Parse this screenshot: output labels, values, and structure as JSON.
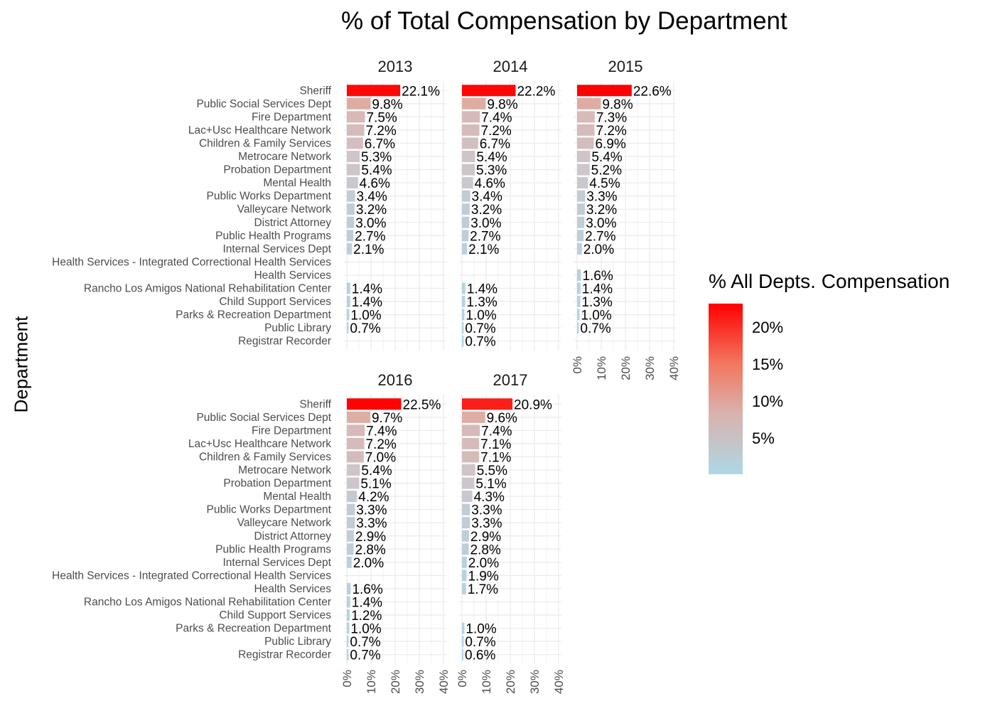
{
  "title": "% of Total Compensation by Department",
  "ylabel": "Department",
  "legend": {
    "title": "% All Depts. Compensation",
    "ticks": [
      "20%",
      "15%",
      "10%",
      "5%"
    ],
    "tick_values": [
      20,
      15,
      10,
      5
    ],
    "low_color": "#add8e6",
    "high_color": "#ff0000"
  },
  "chart_data": {
    "type": "bar",
    "orientation": "horizontal",
    "facet_by": "year",
    "x_ticks": [
      "0%",
      "10%",
      "20%",
      "30%",
      "40%"
    ],
    "xlim": [
      0,
      40
    ],
    "categories": [
      "Sheriff",
      "Public Social Services Dept",
      "Fire Department",
      "Lac+Usc Healthcare Network",
      "Children & Family Services",
      "Metrocare Network",
      "Probation Department",
      "Mental Health",
      "Public Works Department",
      "Valleycare Network",
      "District Attorney",
      "Public Health Programs",
      "Internal Services Dept",
      "Health Services - Integrated Correctional Health Services",
      "Health Services",
      "Rancho Los Amigos National Rehabilitation Center",
      "Child Support Services",
      "Parks & Recreation Department",
      "Public Library",
      "Registrar Recorder"
    ],
    "panels": [
      {
        "year": "2013",
        "values": [
          22.1,
          9.8,
          7.5,
          7.2,
          6.7,
          5.3,
          5.4,
          4.6,
          3.4,
          3.2,
          3.0,
          2.7,
          2.1,
          null,
          null,
          1.4,
          1.4,
          1.0,
          0.7,
          null
        ],
        "labels": [
          "22.1%",
          "9.8%",
          "7.5%",
          "7.2%",
          "6.7%",
          "5.3%",
          "5.4%",
          "4.6%",
          "3.4%",
          "3.2%",
          "3.0%",
          "2.7%",
          "2.1%",
          "",
          "",
          "1.4%",
          "1.4%",
          "1.0%",
          "0.7%",
          ""
        ]
      },
      {
        "year": "2014",
        "values": [
          22.2,
          9.8,
          7.4,
          7.2,
          6.7,
          5.4,
          5.3,
          4.6,
          3.4,
          3.2,
          3.0,
          2.7,
          2.1,
          null,
          null,
          1.4,
          1.3,
          1.0,
          0.7,
          0.7
        ],
        "labels": [
          "22.2%",
          "9.8%",
          "7.4%",
          "7.2%",
          "6.7%",
          "5.4%",
          "5.3%",
          "4.6%",
          "3.4%",
          "3.2%",
          "3.0%",
          "2.7%",
          "2.1%",
          "",
          "",
          "1.4%",
          "1.3%",
          "1.0%",
          "0.7%",
          "0.7%"
        ]
      },
      {
        "year": "2015",
        "values": [
          22.6,
          9.8,
          7.3,
          7.2,
          6.9,
          5.4,
          5.2,
          4.5,
          3.3,
          3.2,
          3.0,
          2.7,
          2.0,
          null,
          1.6,
          1.4,
          1.3,
          1.0,
          0.7,
          null
        ],
        "labels": [
          "22.6%",
          "9.8%",
          "7.3%",
          "7.2%",
          "6.9%",
          "5.4%",
          "5.2%",
          "4.5%",
          "3.3%",
          "3.2%",
          "3.0%",
          "2.7%",
          "2.0%",
          "",
          "1.6%",
          "1.4%",
          "1.3%",
          "1.0%",
          "0.7%",
          ""
        ]
      },
      {
        "year": "2016",
        "values": [
          22.5,
          9.7,
          7.4,
          7.2,
          7.0,
          5.4,
          5.1,
          4.2,
          3.3,
          3.3,
          2.9,
          2.8,
          2.0,
          null,
          1.6,
          1.4,
          1.2,
          1.0,
          0.7,
          0.7
        ],
        "labels": [
          "22.5%",
          "9.7%",
          "7.4%",
          "7.2%",
          "7.0%",
          "5.4%",
          "5.1%",
          "4.2%",
          "3.3%",
          "3.3%",
          "2.9%",
          "2.8%",
          "2.0%",
          "",
          "1.6%",
          "1.4%",
          "1.2%",
          "1.0%",
          "0.7%",
          "0.7%"
        ]
      },
      {
        "year": "2017",
        "values": [
          20.9,
          9.6,
          7.4,
          7.1,
          7.1,
          5.5,
          5.1,
          4.3,
          3.3,
          3.3,
          2.9,
          2.8,
          2.0,
          1.9,
          1.7,
          null,
          null,
          1.0,
          0.7,
          0.6
        ],
        "labels": [
          "20.9%",
          "9.6%",
          "7.4%",
          "7.1%",
          "7.1%",
          "5.5%",
          "5.1%",
          "4.3%",
          "3.3%",
          "3.3%",
          "2.9%",
          "2.8%",
          "2.0%",
          "1.9%",
          "1.7%",
          "",
          "",
          "1.0%",
          "0.7%",
          "0.6%"
        ]
      }
    ]
  }
}
